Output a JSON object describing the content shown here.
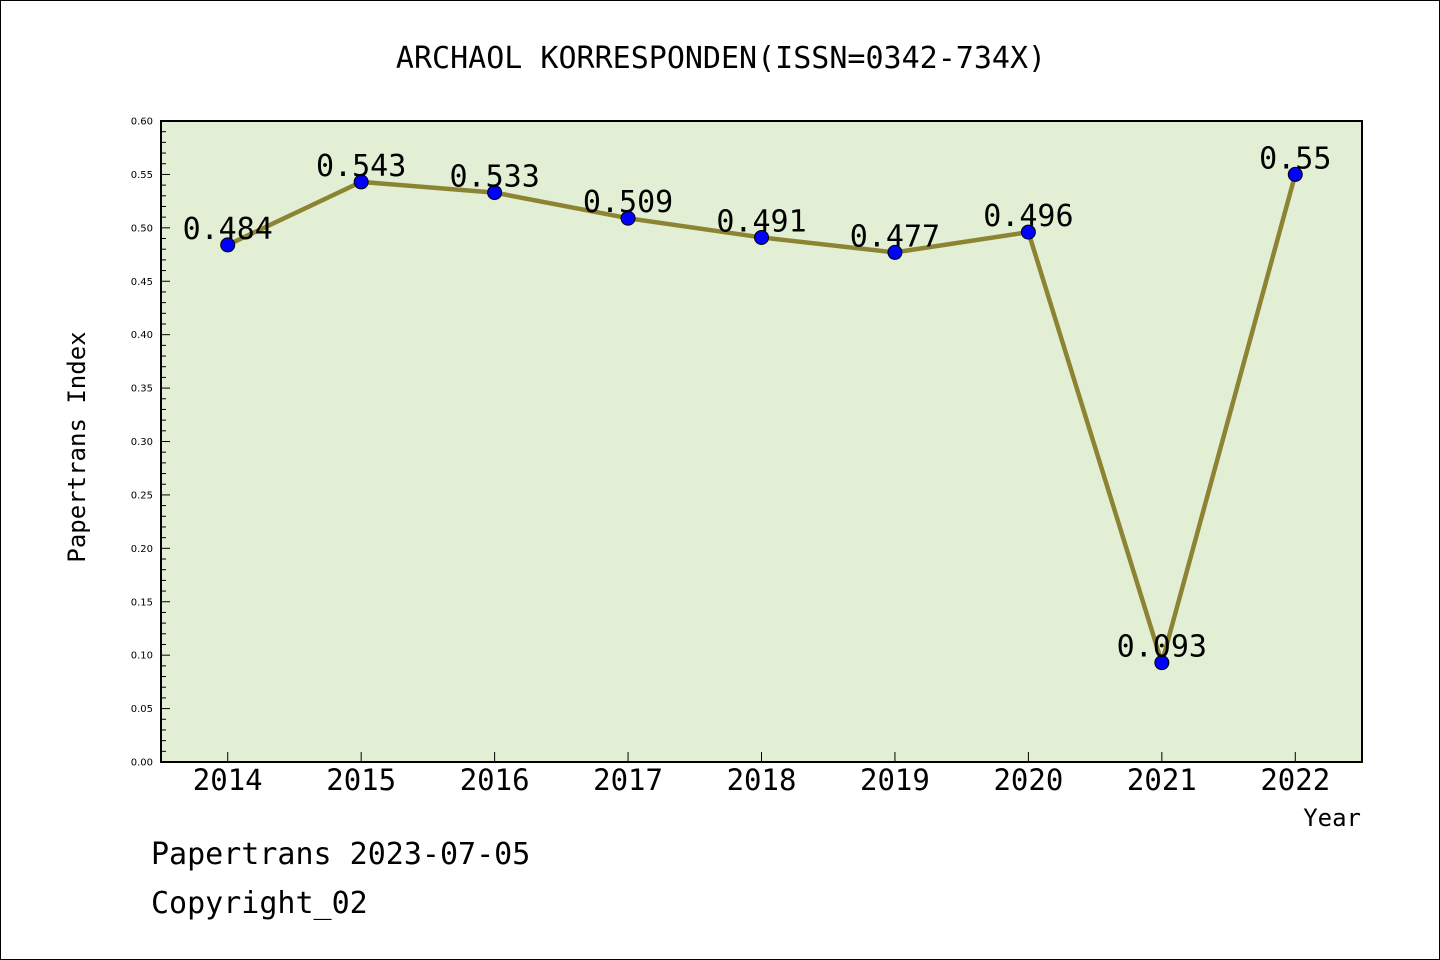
{
  "chart_data": {
    "type": "line",
    "title": "ARCHAOL KORRESPONDEN(ISSN=0342-734X)",
    "xlabel": "Year",
    "ylabel": "Papertrans Index",
    "categories": [
      "2014",
      "2015",
      "2016",
      "2017",
      "2018",
      "2019",
      "2020",
      "2021",
      "2022"
    ],
    "series": [
      {
        "values": [
          0.484,
          0.543,
          0.533,
          0.509,
          0.491,
          0.477,
          0.496,
          0.093,
          0.55
        ],
        "data_labels": [
          "0.484",
          "0.543",
          "0.533",
          "0.509",
          "0.491",
          "0.477",
          "0.496",
          "0.093",
          "0.55"
        ]
      }
    ],
    "ylim": [
      0,
      0.6
    ],
    "yticks": [
      "0.00",
      "0.05",
      "0.10",
      "0.15",
      "0.20",
      "0.25",
      "0.30",
      "0.35",
      "0.40",
      "0.45",
      "0.50",
      "0.55",
      "0.60"
    ],
    "grid": false,
    "legend": "none",
    "colors": {
      "plot_background": "#e2efd4",
      "line": "#8c8432",
      "marker": "#0000ff"
    }
  },
  "footer": {
    "source": "Papertrans 2023-07-05",
    "copyright": "Copyright_02"
  }
}
